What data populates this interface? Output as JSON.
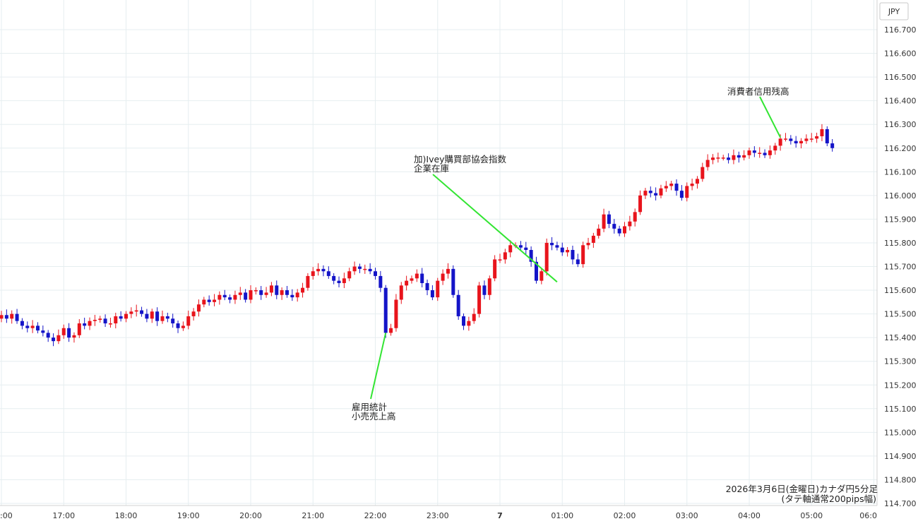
{
  "chart_data": {
    "type": "candlestick",
    "currency": "JPY",
    "y_ticks": [
      "116.700",
      "116.600",
      "116.500",
      "116.400",
      "116.300",
      "116.200",
      "116.100",
      "116.000",
      "115.900",
      "115.800",
      "115.700",
      "115.600",
      "115.500",
      "115.400",
      "115.300",
      "115.200",
      "115.100",
      "115.000",
      "114.900",
      "114.800",
      "114.700"
    ],
    "ylim": [
      114.7,
      116.7
    ],
    "x_ticks": [
      {
        "label": ":00",
        "bold": false
      },
      {
        "label": "17:00",
        "bold": false
      },
      {
        "label": "18:00",
        "bold": false
      },
      {
        "label": "19:00",
        "bold": false
      },
      {
        "label": "20:00",
        "bold": false
      },
      {
        "label": "21:00",
        "bold": false
      },
      {
        "label": "22:00",
        "bold": false
      },
      {
        "label": "23:00",
        "bold": false
      },
      {
        "label": "7",
        "bold": true
      },
      {
        "label": "01:00",
        "bold": false
      },
      {
        "label": "02:00",
        "bold": false
      },
      {
        "label": "03:00",
        "bold": false
      },
      {
        "label": "04:00",
        "bold": false
      },
      {
        "label": "05:00",
        "bold": false
      },
      {
        "label": "06:0",
        "bold": false
      }
    ],
    "candles_per_hour": 12,
    "candles_before_first_tick": 1,
    "closes": [
      115.48,
      115.495,
      115.48,
      115.5,
      115.47,
      115.45,
      115.44,
      115.45,
      115.43,
      115.42,
      115.4,
      115.385,
      115.41,
      115.44,
      115.4,
      115.41,
      115.46,
      115.45,
      115.47,
      115.475,
      115.48,
      115.46,
      115.46,
      115.49,
      115.48,
      115.5,
      115.51,
      115.515,
      115.5,
      115.48,
      115.51,
      115.47,
      115.49,
      115.48,
      115.46,
      115.44,
      115.45,
      115.49,
      115.51,
      115.54,
      115.56,
      115.55,
      115.56,
      115.58,
      115.57,
      115.56,
      115.58,
      115.59,
      115.56,
      115.6,
      115.6,
      115.58,
      115.59,
      115.62,
      115.58,
      115.6,
      115.58,
      115.57,
      115.59,
      115.61,
      115.66,
      115.68,
      115.69,
      115.68,
      115.66,
      115.64,
      115.63,
      115.65,
      115.68,
      115.7,
      115.69,
      115.69,
      115.68,
      115.66,
      115.61,
      115.42,
      115.44,
      115.56,
      115.62,
      115.64,
      115.65,
      115.67,
      115.63,
      115.6,
      115.57,
      115.64,
      115.67,
      115.69,
      115.58,
      115.49,
      115.45,
      115.47,
      115.5,
      115.62,
      115.58,
      115.65,
      115.73,
      115.73,
      115.76,
      115.79,
      115.79,
      115.78,
      115.77,
      115.72,
      115.64,
      115.68,
      115.8,
      115.79,
      115.78,
      115.76,
      115.77,
      115.73,
      115.71,
      115.79,
      115.8,
      115.83,
      115.86,
      115.92,
      115.88,
      115.86,
      115.84,
      115.87,
      115.89,
      115.93,
      116.0,
      116.02,
      116.01,
      116.0,
      116.03,
      116.04,
      116.05,
      116.02,
      115.99,
      116.04,
      116.05,
      116.07,
      116.12,
      116.15,
      116.16,
      116.16,
      116.16,
      116.15,
      116.17,
      116.16,
      116.17,
      116.19,
      116.18,
      116.18,
      116.17,
      116.19,
      116.21,
      116.24,
      116.24,
      116.23,
      116.22,
      116.23,
      116.24,
      116.24,
      116.25,
      116.28,
      116.22,
      116.2
    ],
    "series": [
      {
        "name": "カナダ円5分足",
        "bull_color": "#e8141c",
        "bear_color": "#1414c8"
      }
    ],
    "annotations": [
      {
        "lines": [
          "雇用統計",
          "小売売上高"
        ],
        "target_candle": 75,
        "target_value": 115.42
      },
      {
        "lines": [
          "加)Ivey購買部協会指数",
          "企業在庫"
        ],
        "target_candle": 108,
        "target_value": 115.635
      },
      {
        "lines": [
          "消費者信用残高"
        ],
        "target_candle": 151,
        "target_value": 116.245
      }
    ],
    "caption": [
      "2026年3月6日(金曜日)カナダ円5分足",
      "(タテ軸通常200pips幅)"
    ],
    "grid": true,
    "annotation_color": "#33e533"
  }
}
